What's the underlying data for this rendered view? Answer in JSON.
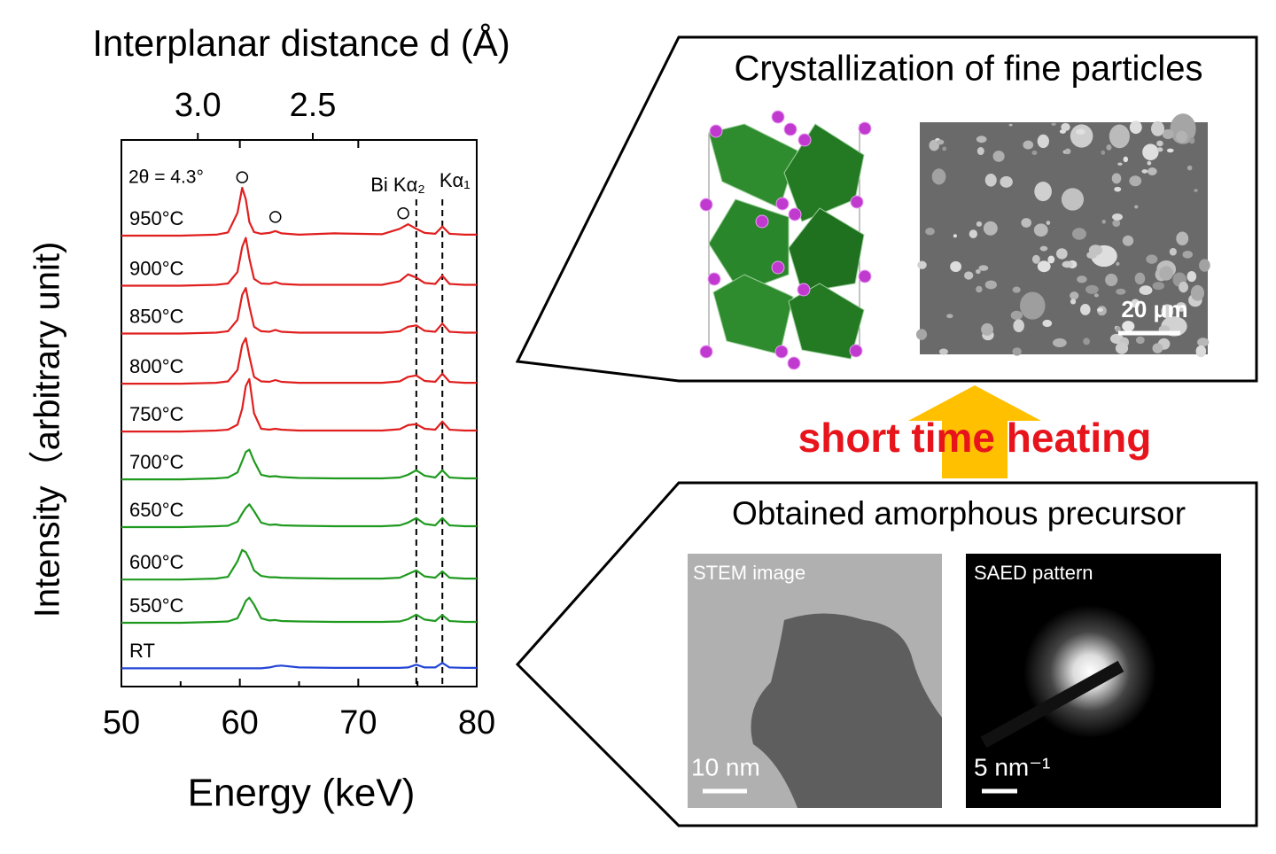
{
  "chart_data": {
    "type": "line",
    "title": "Interplanar distance d (Å)",
    "xlabel": "Energy (keV)",
    "ylabel": "Intensity（arbitrary unit)",
    "annotation": "2θ = 4.3°",
    "line_labels": [
      "Bi Kα₂",
      "Kα₁"
    ],
    "vlines": [
      74.9,
      77.1
    ],
    "circle_markers": {
      "x": [
        60.2,
        63.0,
        73.8
      ],
      "y": [
        11.18,
        10.31,
        10.39
      ]
    },
    "xlim": [
      50,
      80
    ],
    "xticks": [
      50,
      60,
      70,
      80
    ],
    "xminorticks": [
      55,
      65,
      75
    ],
    "x2lim": [
      3.46,
      2.02
    ],
    "x2scale": "reciprocal",
    "x2ticks": [
      {
        "value": 3,
        "label": "3.0"
      },
      {
        "value": 2.5,
        "label": "2.5"
      }
    ],
    "ylim": [
      0,
      12
    ],
    "x": [
      50,
      55,
      58,
      59,
      59.8,
      60.2,
      60.5,
      60.8,
      61.2,
      61.8,
      62.5,
      63,
      63.5,
      65,
      68,
      72,
      73.5,
      74.2,
      74.9,
      75.6,
      76.5,
      77.1,
      77.7,
      79,
      80
    ],
    "series": [
      {
        "name": "RT",
        "color": "#2446d6",
        "values": [
          0.4,
          0.4,
          0.4,
          0.4,
          0.4,
          0.4,
          0.4,
          0.4,
          0.4,
          0.4,
          0.42,
          0.45,
          0.46,
          0.42,
          0.41,
          0.41,
          0.41,
          0.42,
          0.48,
          0.42,
          0.42,
          0.52,
          0.42,
          0.41,
          0.41
        ]
      },
      {
        "name": "550°C",
        "color": "#1f9a1f",
        "values": [
          1.4,
          1.4,
          1.42,
          1.43,
          1.5,
          1.7,
          1.88,
          1.95,
          1.8,
          1.5,
          1.45,
          1.46,
          1.44,
          1.43,
          1.42,
          1.42,
          1.43,
          1.48,
          1.58,
          1.47,
          1.44,
          1.57,
          1.44,
          1.42,
          1.42
        ]
      },
      {
        "name": "600°C",
        "color": "#1f9a1f",
        "values": [
          2.35,
          2.35,
          2.37,
          2.41,
          2.75,
          3.0,
          2.95,
          2.8,
          2.55,
          2.43,
          2.4,
          2.4,
          2.39,
          2.38,
          2.37,
          2.37,
          2.39,
          2.47,
          2.55,
          2.42,
          2.39,
          2.53,
          2.39,
          2.37,
          2.37
        ]
      },
      {
        "name": "650°C",
        "color": "#1f9a1f",
        "values": [
          3.5,
          3.5,
          3.52,
          3.53,
          3.62,
          3.8,
          3.92,
          4.0,
          3.85,
          3.6,
          3.55,
          3.56,
          3.54,
          3.53,
          3.52,
          3.52,
          3.54,
          3.6,
          3.7,
          3.57,
          3.54,
          3.7,
          3.54,
          3.52,
          3.52
        ]
      },
      {
        "name": "700°C",
        "color": "#1f9a1f",
        "values": [
          4.55,
          4.55,
          4.57,
          4.59,
          4.7,
          4.95,
          5.15,
          5.2,
          4.95,
          4.65,
          4.61,
          4.62,
          4.6,
          4.58,
          4.57,
          4.57,
          4.59,
          4.65,
          4.75,
          4.63,
          4.59,
          4.75,
          4.59,
          4.57,
          4.57
        ]
      },
      {
        "name": "750°C",
        "color": "#e01f1f",
        "values": [
          5.6,
          5.6,
          5.62,
          5.64,
          5.75,
          6.1,
          6.6,
          6.75,
          6.0,
          5.66,
          5.64,
          5.66,
          5.64,
          5.62,
          5.62,
          5.62,
          5.65,
          5.74,
          5.76,
          5.66,
          5.64,
          5.82,
          5.64,
          5.62,
          5.62
        ]
      },
      {
        "name": "800°C",
        "color": "#e01f1f",
        "values": [
          6.65,
          6.65,
          6.67,
          6.7,
          6.95,
          7.5,
          7.65,
          7.25,
          6.8,
          6.7,
          6.69,
          6.73,
          6.69,
          6.67,
          6.67,
          6.67,
          6.7,
          6.8,
          6.83,
          6.71,
          6.69,
          6.87,
          6.69,
          6.67,
          6.67
        ]
      },
      {
        "name": "850°C",
        "color": "#e01f1f",
        "values": [
          7.75,
          7.75,
          7.77,
          7.8,
          8.05,
          8.6,
          8.75,
          8.35,
          7.9,
          7.8,
          7.79,
          7.83,
          7.79,
          7.77,
          7.77,
          7.77,
          7.8,
          7.9,
          7.93,
          7.81,
          7.79,
          7.97,
          7.79,
          7.77,
          7.77
        ]
      },
      {
        "name": "900°C",
        "color": "#e01f1f",
        "values": [
          8.8,
          8.8,
          8.82,
          8.85,
          9.1,
          9.65,
          9.85,
          9.4,
          8.95,
          8.85,
          8.84,
          8.88,
          8.84,
          8.82,
          8.82,
          8.82,
          8.9,
          9.05,
          8.98,
          8.86,
          8.84,
          9.02,
          8.84,
          8.82,
          8.82
        ]
      },
      {
        "name": "950°C",
        "color": "#e01f1f",
        "values": [
          9.9,
          9.9,
          9.92,
          9.97,
          10.4,
          10.95,
          10.7,
          10.2,
          9.98,
          9.94,
          9.96,
          10.0,
          9.95,
          9.92,
          9.95,
          9.93,
          10.05,
          10.15,
          10.05,
          9.96,
          9.94,
          10.1,
          9.94,
          9.92,
          9.92
        ]
      }
    ]
  },
  "panels": {
    "top": {
      "title": "Crystallization of fine particles",
      "scale_bar": "20 μm"
    },
    "arrow_label": "short time heating",
    "bottom": {
      "title": "Obtained amorphous precursor",
      "stem": {
        "caption": "STEM image",
        "scale_bar": "10 nm"
      },
      "saed": {
        "caption": "SAED pattern",
        "scale_bar": "5 nm⁻¹"
      }
    }
  }
}
